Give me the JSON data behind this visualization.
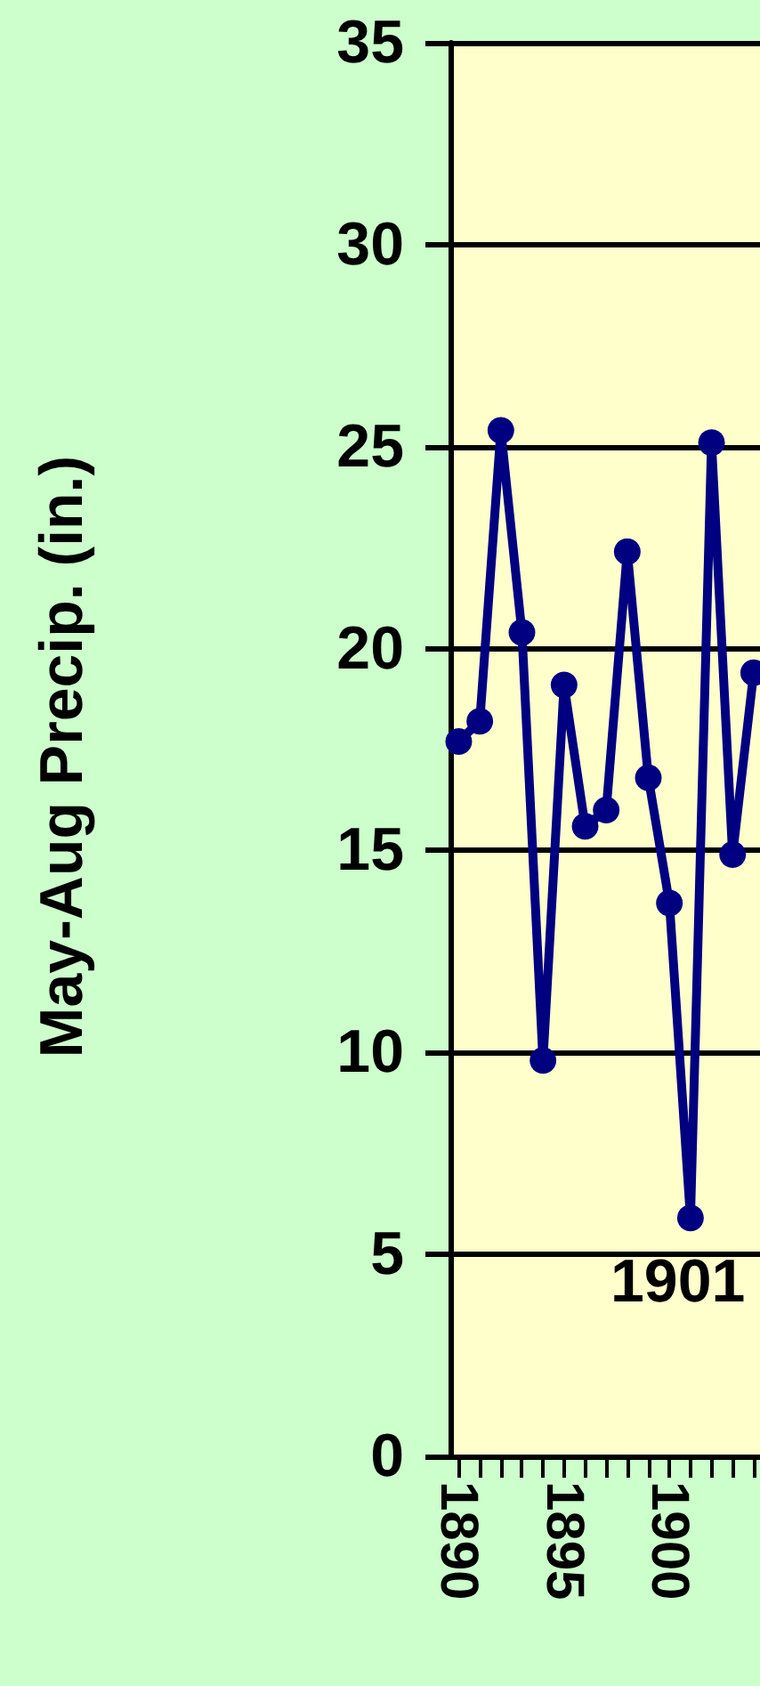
{
  "chart_data": {
    "type": "line",
    "ylabel": "May-Aug Precip. (in.)",
    "x": [
      1890,
      1891,
      1892,
      1893,
      1894,
      1895,
      1896,
      1897,
      1898,
      1899,
      1900,
      1901,
      1902,
      1903,
      1904
    ],
    "series": [
      {
        "color": "#000080",
        "values": [
          17.7,
          18.2,
          25.4,
          20.4,
          9.8,
          19.1,
          15.6,
          16.0,
          22.4,
          16.8,
          13.7,
          5.9,
          25.1,
          14.9,
          19.4
        ]
      }
    ],
    "xlim": [
      1889.6,
      1904.3
    ],
    "xticks": [
      1890,
      {
        "value": 1891,
        "label": null
      },
      {
        "value": 1892,
        "label": null
      },
      {
        "value": 1893,
        "label": null
      },
      {
        "value": 1894,
        "label": null
      },
      1895,
      {
        "value": 1896,
        "label": null
      },
      {
        "value": 1897,
        "label": null
      },
      {
        "value": 1898,
        "label": null
      },
      {
        "value": 1899,
        "label": null
      },
      1900,
      {
        "value": 1901,
        "label": null
      },
      {
        "value": 1902,
        "label": null
      },
      {
        "value": 1903,
        "label": null
      },
      {
        "value": 1904,
        "label": null
      }
    ],
    "ylim": [
      0,
      35
    ],
    "yticks": [
      0,
      5,
      10,
      15,
      20,
      25,
      30,
      35
    ],
    "grid": "y",
    "marker": "circle",
    "line_style": "solid",
    "annotations": [
      "1901"
    ]
  }
}
